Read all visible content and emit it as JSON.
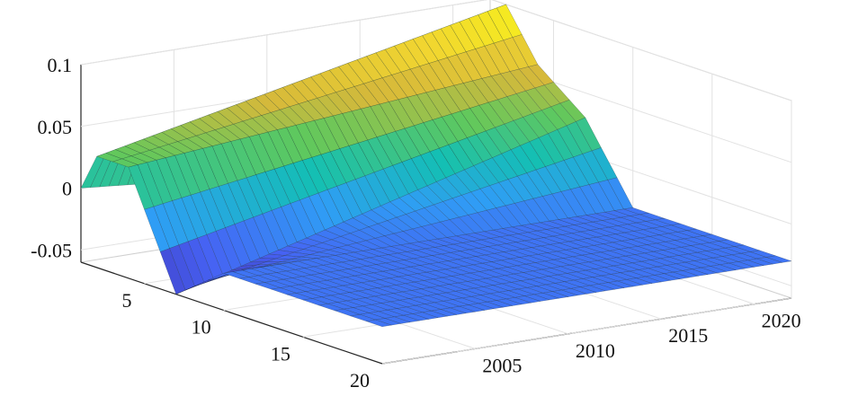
{
  "chart_data": {
    "type": "surface",
    "title": "",
    "xlabel": "",
    "ylabel": "",
    "zlabel": "",
    "grid": true,
    "z_ticks": [
      {
        "label": "0.1",
        "value": 0.1
      },
      {
        "label": "0.05",
        "value": 0.05
      },
      {
        "label": "0",
        "value": 0
      },
      {
        "label": "-0.05",
        "value": -0.05
      }
    ],
    "horizon_ticks": [
      {
        "label": "5",
        "value": 5
      },
      {
        "label": "10",
        "value": 10
      },
      {
        "label": "15",
        "value": 15
      },
      {
        "label": "20",
        "value": 20
      }
    ],
    "year_ticks": [
      {
        "label": "2005",
        "value": 2005
      },
      {
        "label": "2010",
        "value": 2010
      },
      {
        "label": "2015",
        "value": 2015
      },
      {
        "label": "2020",
        "value": 2020
      }
    ],
    "horizon_range": [
      1,
      20
    ],
    "year_range": [
      2000,
      2022
    ],
    "z_range": [
      -0.06,
      0.1
    ],
    "colormap": [
      "#3e26a8",
      "#4662f3",
      "#2f9df5",
      "#14bfb4",
      "#60c85d",
      "#d6b93a",
      "#f1d530",
      "#f9fb15"
    ],
    "surface_profile": [
      {
        "horizon": 1,
        "year_start": 2000,
        "z_start": 0.0,
        "z_end": -0.03
      },
      {
        "horizon": 2,
        "year_start": 2000,
        "z_start": 0.03,
        "z_end": 0.1
      },
      {
        "horizon": 4,
        "year_start": 2000,
        "z_start": 0.03,
        "z_end": 0.06
      },
      {
        "horizon": 7,
        "year_start": 2000,
        "z_start": -0.06,
        "z_end": 0.03
      },
      {
        "horizon": 10,
        "year_start": 2000,
        "z_start": -0.03,
        "z_end": -0.03
      },
      {
        "horizon": 20,
        "year_start": 2000,
        "z_start": -0.03,
        "z_end": -0.03
      }
    ]
  }
}
